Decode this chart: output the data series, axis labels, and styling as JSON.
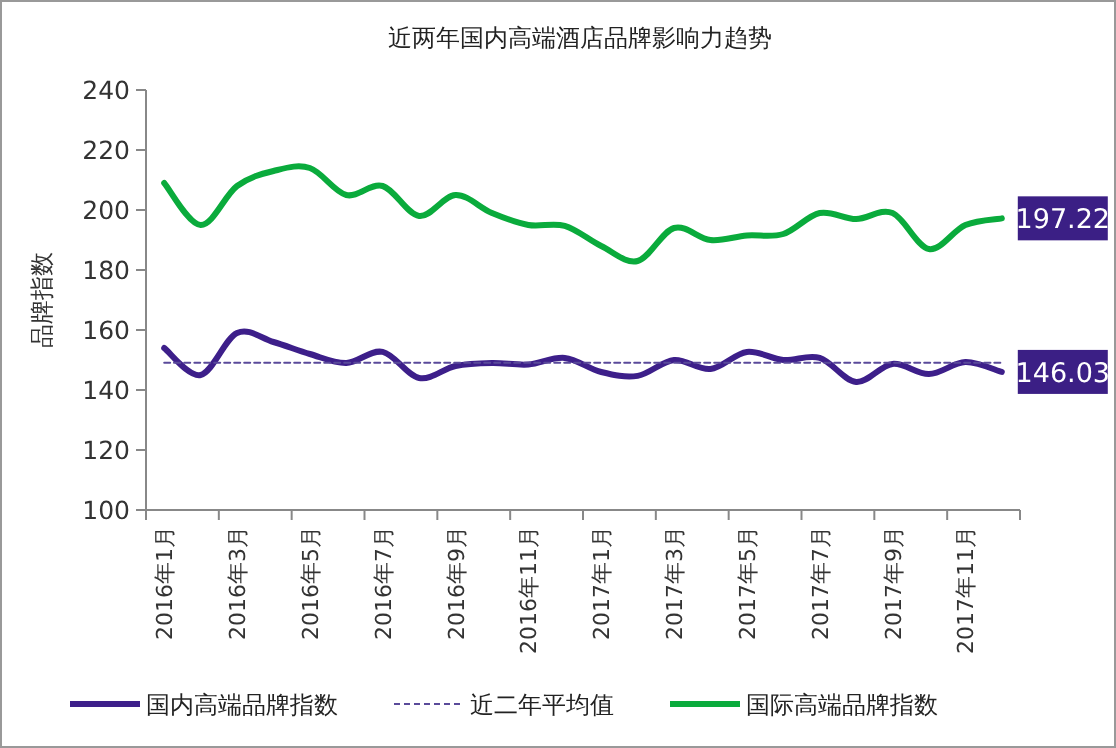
{
  "chart_data": {
    "type": "line",
    "title": "近两年国内高端酒店品牌影响力趋势",
    "ylabel": "品牌指数",
    "categories": [
      "2016年1月",
      null,
      "2016年3月",
      null,
      "2016年5月",
      null,
      "2016年7月",
      null,
      "2016年9月",
      null,
      "2016年11月",
      null,
      "2017年1月",
      null,
      "2017年3月",
      null,
      "2017年5月",
      null,
      "2017年7月",
      null,
      "2017年9月",
      null,
      "2017年11月",
      null
    ],
    "ylim": [
      100,
      240
    ],
    "yticks": [
      100,
      120,
      140,
      160,
      180,
      200,
      220,
      240
    ],
    "grid": false,
    "legend": "bottom",
    "marker": "none",
    "series": [
      {
        "name": "国内高端品牌指数",
        "color": "#3d1f8a",
        "line_style": "solid",
        "values": [
          154,
          145,
          159,
          156,
          152,
          149,
          152.7,
          144,
          148,
          149,
          148.5,
          150.7,
          146,
          144.7,
          150,
          147,
          152.7,
          150,
          150.7,
          142.7,
          148.7,
          145.3,
          149.3,
          146.03
        ],
        "value_labels": [
          null,
          null,
          null,
          null,
          null,
          null,
          null,
          null,
          null,
          null,
          null,
          null,
          null,
          null,
          null,
          null,
          null,
          null,
          null,
          null,
          null,
          null,
          null,
          "146.03"
        ]
      },
      {
        "name": "近二年平均值",
        "color": "#5a4a9a",
        "line_style": "dashed",
        "values": [
          149.1,
          149.1,
          149.1,
          149.1,
          149.1,
          149.1,
          149.1,
          149.1,
          149.1,
          149.1,
          149.1,
          149.1,
          149.1,
          149.1,
          149.1,
          149.1,
          149.1,
          149.1,
          149.1,
          149.1,
          149.1,
          149.1,
          149.1,
          149.1
        ]
      },
      {
        "name": "国际高端品牌指数",
        "color": "#0aab3c",
        "line_style": "solid",
        "values": [
          209,
          195,
          208,
          213,
          214,
          205,
          208,
          198,
          205,
          199,
          195,
          194.7,
          188,
          183,
          194,
          190,
          191.5,
          192,
          199,
          197,
          199,
          187,
          195,
          197.22
        ],
        "value_labels": [
          null,
          null,
          null,
          null,
          null,
          null,
          null,
          null,
          null,
          null,
          null,
          null,
          null,
          null,
          null,
          null,
          null,
          null,
          null,
          null,
          null,
          null,
          null,
          "197.22"
        ]
      }
    ]
  }
}
